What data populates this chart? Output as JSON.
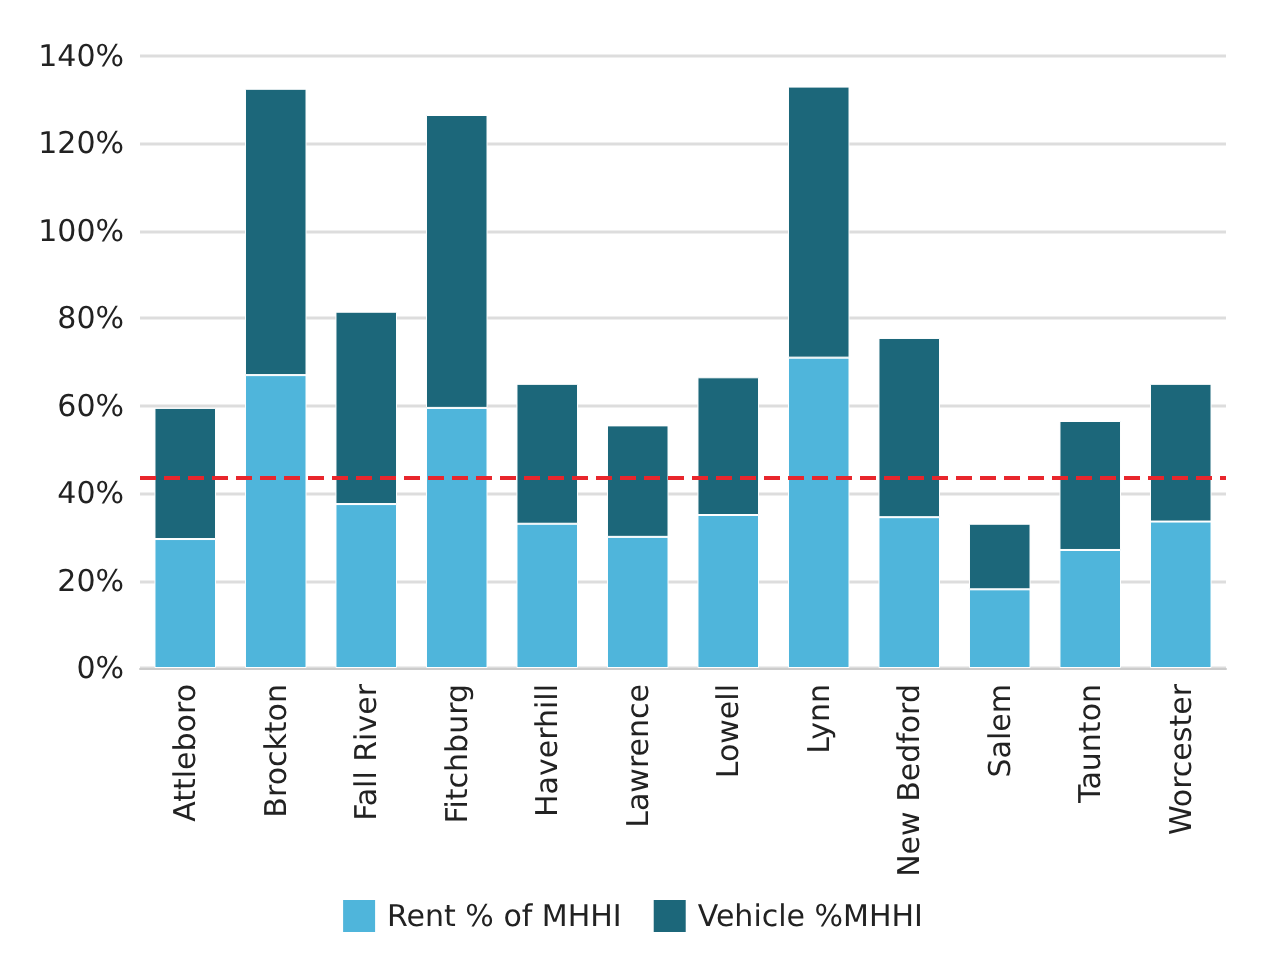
{
  "chart_data": {
    "type": "bar",
    "stacked": true,
    "categories": [
      "Attleboro",
      "Brockton",
      "Fall River",
      "Fitchburg",
      "Haverhill",
      "Lawrence",
      "Lowell",
      "Lynn",
      "New Bedford",
      "Salem",
      "Taunton",
      "Worcester"
    ],
    "series": [
      {
        "name": "Rent % of MHHI",
        "color": "#4fb5db",
        "values": [
          29.5,
          67,
          37.5,
          59.5,
          33,
          30,
          35,
          71,
          34.5,
          18,
          27,
          33.5
        ]
      },
      {
        "name": "Vehicle %MHHI",
        "color": "#1c677a",
        "values": [
          30,
          65.5,
          44,
          67,
          32,
          25.5,
          31.5,
          62,
          41,
          15,
          29.5,
          31.5
        ]
      }
    ],
    "ylim": [
      0,
      140
    ],
    "yticks": [
      {
        "value": 0,
        "label": "0%"
      },
      {
        "value": 20,
        "label": "20%"
      },
      {
        "value": 40,
        "label": "40%"
      },
      {
        "value": 60,
        "label": "60%"
      },
      {
        "value": 80,
        "label": "80%"
      },
      {
        "value": 100,
        "label": "100%"
      },
      {
        "value": 120,
        "label": "120%"
      },
      {
        "value": 140,
        "label": "140%"
      }
    ],
    "grid": "y",
    "legend": "bottom",
    "ref_lines": [
      {
        "axis": "y",
        "value": 43.5,
        "color": "#e8262c",
        "line_style": "dashed"
      }
    ]
  }
}
